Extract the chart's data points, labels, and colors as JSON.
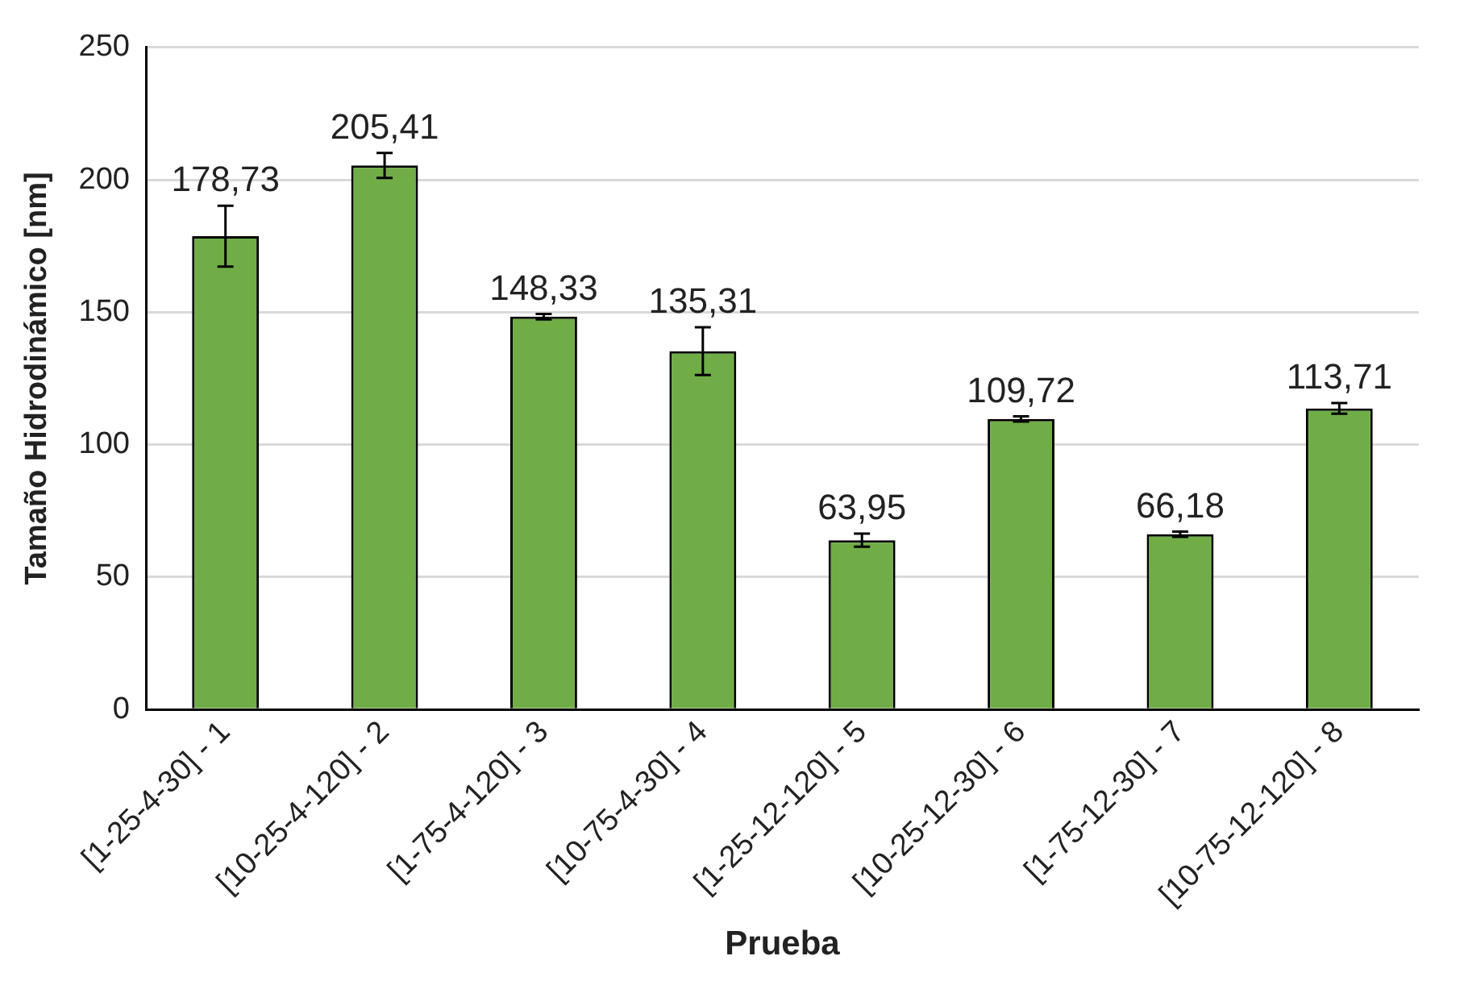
{
  "chart_data": {
    "type": "bar",
    "xlabel": "Prueba",
    "ylabel": "Tamaño Hidrodinámico [nm]",
    "categories": [
      "[1-25-4-30] - 1",
      "[10-25-4-120] - 2",
      "[1-75-4-120] - 3",
      "[10-75-4-30] - 4",
      "[1-25-12-120] - 5",
      "[10-25-12-30] - 6",
      "[1-75-12-30] - 7",
      "[10-75-12-120] - 8"
    ],
    "values": [
      178.73,
      205.41,
      148.33,
      135.31,
      63.95,
      109.72,
      66.18,
      113.71
    ],
    "value_labels": [
      "178,73",
      "205,41",
      "148,33",
      "135,31",
      "63,95",
      "109,72",
      "66,18",
      "113,71"
    ],
    "errors": [
      11.5,
      4.7,
      1,
      9,
      2.5,
      1,
      1,
      2
    ],
    "color": "#70ad47",
    "ylim": [
      0,
      250
    ],
    "yticks": [
      0,
      50,
      100,
      150,
      200,
      250
    ],
    "grid": "y",
    "legend": false
  }
}
